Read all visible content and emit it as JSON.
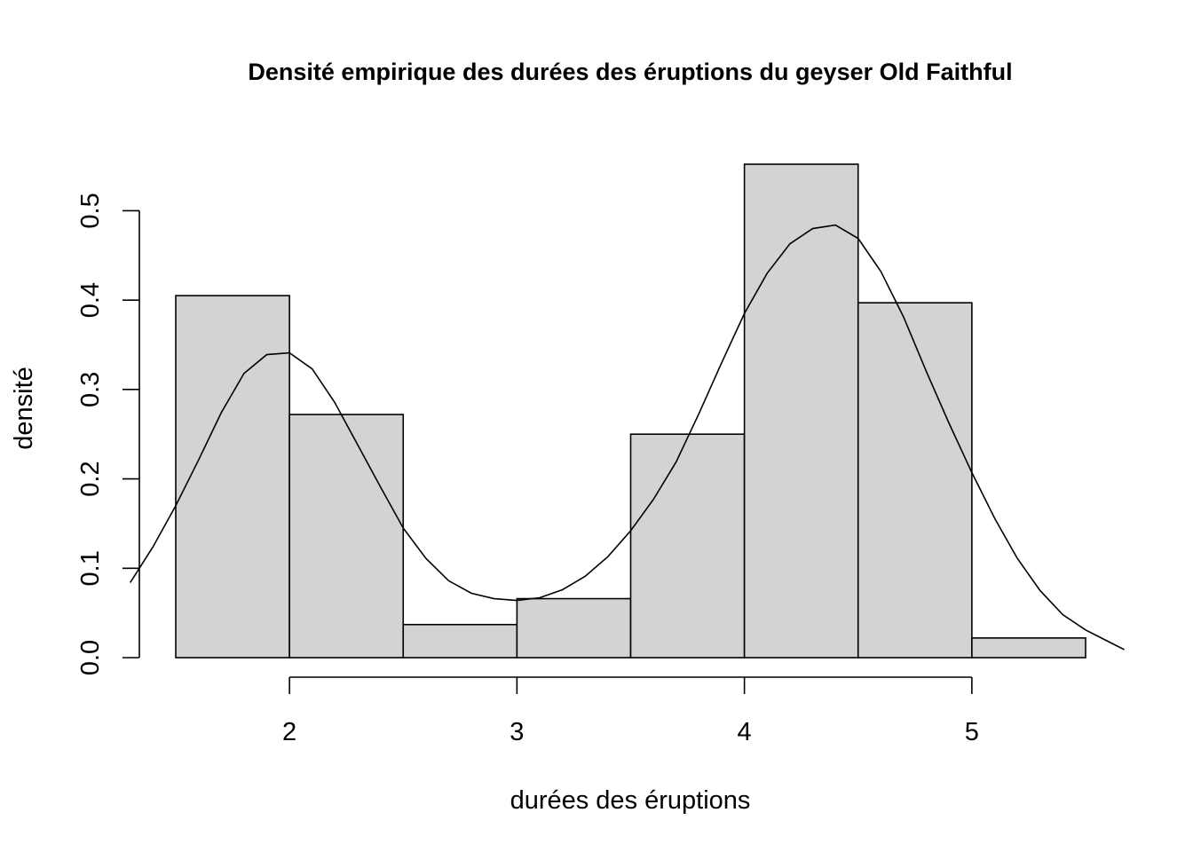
{
  "chart_data": {
    "type": "bar",
    "title": "Densité empirique des durées des éruptions du geyser Old Faithful",
    "xlabel": "durées des éruptions",
    "ylabel": "densité",
    "bins": [
      {
        "x0": 1.5,
        "x1": 2.0,
        "density": 0.405
      },
      {
        "x0": 2.0,
        "x1": 2.5,
        "density": 0.272
      },
      {
        "x0": 2.5,
        "x1": 3.0,
        "density": 0.037
      },
      {
        "x0": 3.0,
        "x1": 3.5,
        "density": 0.066
      },
      {
        "x0": 3.5,
        "x1": 4.0,
        "density": 0.25
      },
      {
        "x0": 4.0,
        "x1": 4.5,
        "density": 0.552
      },
      {
        "x0": 4.5,
        "x1": 5.0,
        "density": 0.397
      },
      {
        "x0": 5.0,
        "x1": 5.5,
        "density": 0.022
      }
    ],
    "density_curve": {
      "x": [
        1.3,
        1.4,
        1.5,
        1.6,
        1.7,
        1.8,
        1.9,
        2.0,
        2.1,
        2.2,
        2.3,
        2.4,
        2.5,
        2.6,
        2.7,
        2.8,
        2.9,
        3.0,
        3.1,
        3.2,
        3.3,
        3.4,
        3.5,
        3.6,
        3.7,
        3.8,
        3.9,
        4.0,
        4.1,
        4.2,
        4.3,
        4.4,
        4.5,
        4.6,
        4.7,
        4.8,
        4.9,
        5.0,
        5.1,
        5.2,
        5.3,
        5.4,
        5.5,
        5.6,
        5.67
      ],
      "y": [
        0.084,
        0.124,
        0.17,
        0.221,
        0.274,
        0.318,
        0.339,
        0.341,
        0.323,
        0.285,
        0.238,
        0.191,
        0.145,
        0.111,
        0.086,
        0.072,
        0.066,
        0.064,
        0.067,
        0.076,
        0.091,
        0.113,
        0.142,
        0.177,
        0.219,
        0.273,
        0.33,
        0.385,
        0.43,
        0.463,
        0.48,
        0.484,
        0.469,
        0.432,
        0.381,
        0.32,
        0.262,
        0.207,
        0.156,
        0.111,
        0.075,
        0.048,
        0.031,
        0.018,
        0.009
      ]
    },
    "x_ticks": [
      2,
      3,
      4,
      5
    ],
    "x_tick_labels": [
      "2",
      "3",
      "4",
      "5"
    ],
    "y_ticks": [
      0.0,
      0.1,
      0.2,
      0.3,
      0.4,
      0.5
    ],
    "y_tick_labels": [
      "0.0",
      "0.1",
      "0.2",
      "0.3",
      "0.4",
      "0.5"
    ],
    "xlim": [
      1.34,
      5.66
    ],
    "ylim": [
      0,
      0.56
    ],
    "bar_fill": "#d3d3d3",
    "line_color": "#000000",
    "grid": false,
    "legend": "none"
  }
}
